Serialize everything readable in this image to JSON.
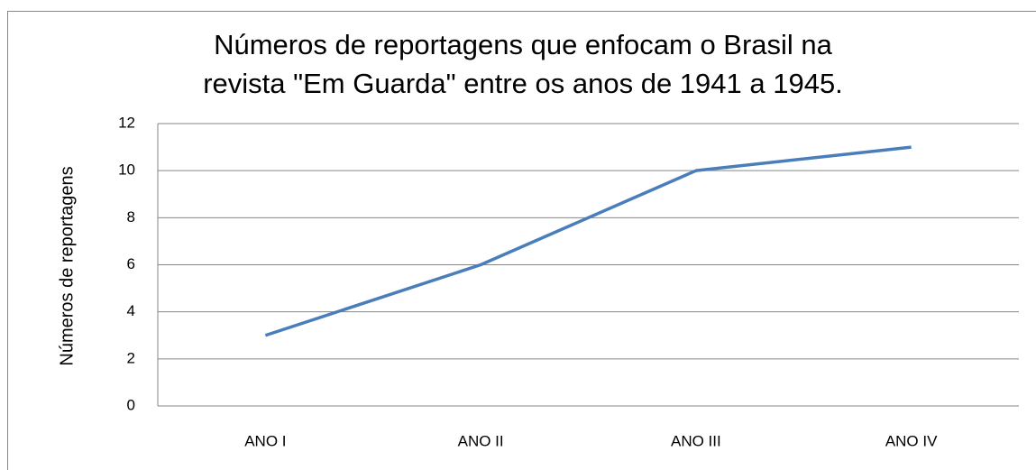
{
  "chart_data": {
    "type": "line",
    "title": [
      "Números de reportagens que enfocam o Brasil na",
      "revista \"Em Guarda\" entre os anos de 1941 a 1945."
    ],
    "y_label": "Números de reportagens",
    "categories": [
      "ANO I",
      "ANO II",
      "ANO III",
      "ANO IV"
    ],
    "series": [
      {
        "name": "Números de reportagens",
        "color": "#4a7ebb",
        "values": [
          3,
          6,
          10,
          11
        ]
      }
    ],
    "ylim": [
      0,
      12
    ],
    "yticks": [
      0,
      2,
      4,
      6,
      8,
      10,
      12
    ],
    "grid": true
  }
}
